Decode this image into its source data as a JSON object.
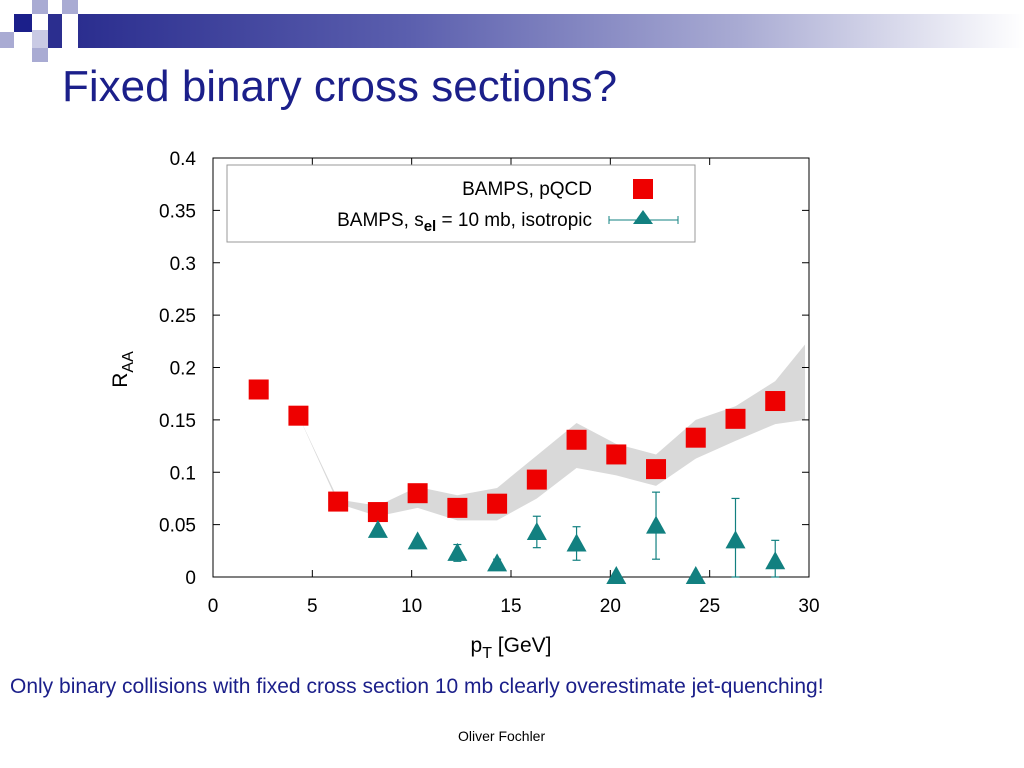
{
  "slide": {
    "title": "Fixed binary cross sections?",
    "caption": "Only binary collisions with fixed cross section 10 mb clearly overestimate jet-quenching!",
    "footer": "Oliver Fochler"
  },
  "theme": {
    "title_color": "#1b1f8a",
    "deco_dark": "#1b1f8a",
    "deco_light": "#a9abd3",
    "pqcd_color": "#ee0000",
    "isotropic_color": "#128080",
    "band_color": "#d9d9d9"
  },
  "chart_data": {
    "type": "scatter",
    "title": "",
    "xlabel": "p",
    "xlabel_sub": "T",
    "xlabel_unit": " [GeV]",
    "ylabel": "R",
    "ylabel_sub": "AA",
    "xlim": [
      0,
      30
    ],
    "ylim": [
      0,
      0.4
    ],
    "xticks": [
      "0",
      "5",
      "10",
      "15",
      "20",
      "25",
      "30"
    ],
    "yticks": [
      "0",
      "0.05",
      "0.1",
      "0.15",
      "0.2",
      "0.25",
      "0.3",
      "0.35",
      "0.4"
    ],
    "legend": {
      "position": "top",
      "entries": [
        {
          "label": "BAMPS, pQCD"
        },
        {
          "label_pre": "BAMPS, s",
          "label_sub": "el",
          "label_post": " = 10 mb, isotropic"
        }
      ]
    },
    "series": [
      {
        "name": "BAMPS, pQCD",
        "marker": "square",
        "x": [
          2.3,
          4.3,
          6.3,
          8.3,
          10.3,
          12.3,
          14.3,
          16.3,
          18.3,
          20.3,
          22.3,
          24.3,
          26.3,
          28.3
        ],
        "y": [
          0.179,
          0.154,
          0.072,
          0.062,
          0.08,
          0.066,
          0.07,
          0.093,
          0.131,
          0.117,
          0.103,
          0.133,
          0.151,
          0.168
        ],
        "band_low": [
          0.179,
          0.154,
          0.07,
          0.058,
          0.066,
          0.054,
          0.054,
          0.075,
          0.104,
          0.097,
          0.087,
          0.113,
          0.13,
          0.146
        ],
        "band_high": [
          0.179,
          0.154,
          0.074,
          0.068,
          0.086,
          0.078,
          0.085,
          0.116,
          0.147,
          0.127,
          0.117,
          0.15,
          0.163,
          0.187
        ],
        "band_end": [
          29.8,
          0.15,
          0.222
        ]
      },
      {
        "name": "BAMPS, s_el = 10 mb, isotropic",
        "marker": "triangle",
        "x": [
          8.3,
          10.3,
          12.3,
          14.3,
          16.3,
          18.3,
          20.3,
          22.3,
          24.3,
          26.3,
          28.3
        ],
        "y": [
          0.045,
          0.034,
          0.023,
          0.013,
          0.043,
          0.032,
          0.001,
          0.049,
          0.001,
          0.035,
          0.015
        ],
        "err": [
          0.0,
          0.0,
          0.008,
          0.004,
          0.015,
          0.016,
          0.0,
          0.032,
          0.0,
          0.04,
          0.02
        ]
      }
    ]
  }
}
